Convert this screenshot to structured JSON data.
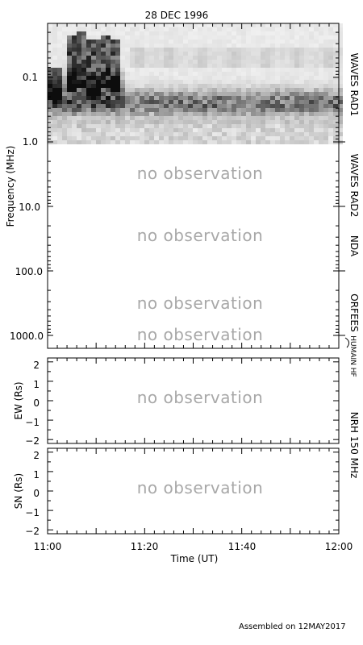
{
  "chart_data": {
    "type": "heatmap",
    "title": "28 DEC 1996",
    "xlabel": "Time (UT)",
    "x_ticks": [
      "11:00",
      "11:20",
      "11:40",
      "12:00"
    ],
    "x_range": [
      "11:00",
      "12:00"
    ],
    "panels": [
      {
        "name": "spectrogram",
        "ylabel": "Frequency (MHz)",
        "y_scale": "log",
        "y_inverted": true,
        "y_ticks": [
          "0.1",
          "1.0",
          "10.0",
          "100.0",
          "1000.0"
        ],
        "instruments": [
          {
            "label": "WAVES RAD1",
            "range_mhz": [
              0.02,
              1.0
            ],
            "status": "observed"
          },
          {
            "label": "WAVES RAD2",
            "range_mhz": [
              1.0,
              14.0
            ],
            "status": "no observation"
          },
          {
            "label": "NDA",
            "range_mhz": [
              14.0,
              100.0
            ],
            "status": "no observation"
          },
          {
            "label": "ORFEES",
            "range_mhz": [
              100.0,
              1000.0
            ],
            "status": "no observation"
          },
          {
            "label": "HUMAIN HF",
            "range_mhz": [
              1000.0,
              1300.0
            ],
            "status": "no observation"
          }
        ]
      },
      {
        "name": "EW",
        "ylabel": "EW (Rs)",
        "y_ticks": [
          "2",
          "1",
          "0",
          "−1",
          "−2"
        ],
        "ylim": [
          -2.2,
          2.2
        ],
        "status": "no observation"
      },
      {
        "name": "SN",
        "ylabel": "SN (Rs)",
        "y_ticks": [
          "2",
          "1",
          "0",
          "−1",
          "−2"
        ],
        "ylim": [
          -2.2,
          2.2
        ],
        "status": "no observation"
      }
    ],
    "nrh_label": "NRH 150 MHz",
    "no_observation_text": "no observation",
    "footer": "Assembled on 12MAY2017"
  }
}
